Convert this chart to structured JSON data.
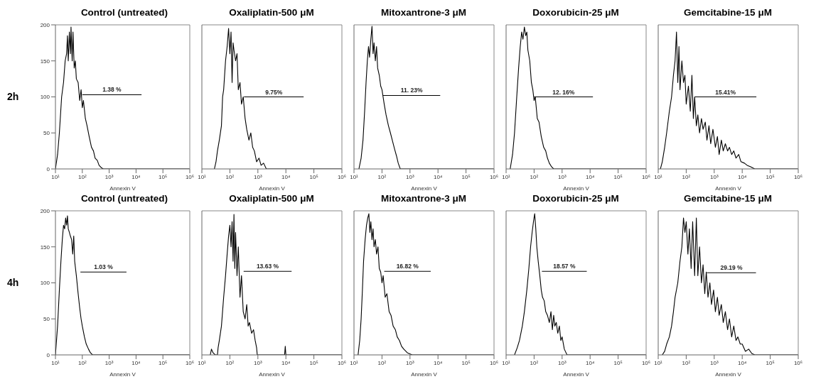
{
  "chart_data": [
    {
      "type": "line",
      "title": "Control (untreated)",
      "xlabel": "Annexin V",
      "ylabel": "2h",
      "log": "x",
      "xlim": [
        10,
        1000000
      ],
      "ylim": [
        0,
        200
      ],
      "yticks": [
        0,
        50,
        100,
        150,
        200
      ],
      "xticks": [
        {
          "value": 10,
          "label": "10¹"
        },
        {
          "value": 100,
          "label": "10²"
        },
        {
          "value": 1000,
          "label": "10³"
        },
        {
          "value": 10000,
          "label": "10⁴"
        },
        {
          "value": 100000,
          "label": "10⁵"
        },
        {
          "value": 1000000,
          "label": "10⁶"
        }
      ],
      "series": [
        {
          "color": "#000000",
          "x": [
            10,
            12,
            14,
            17,
            20,
            23,
            26,
            28,
            30,
            33,
            36,
            38,
            42,
            45,
            50,
            55,
            60,
            70,
            80,
            90,
            100,
            110,
            130,
            150,
            180,
            220,
            260,
            300,
            360,
            420,
            500,
            600,
            1000000
          ],
          "values": [
            0,
            20,
            50,
            100,
            120,
            150,
            160,
            185,
            150,
            190,
            160,
            197,
            150,
            190,
            140,
            150,
            125,
            120,
            95,
            110,
            85,
            95,
            70,
            60,
            45,
            30,
            25,
            15,
            12,
            5,
            2,
            0,
            0
          ]
        },
        {
          "type": "line",
          "color": "#000000",
          "x": [
            100,
            16000
          ],
          "values": [
            103,
            103
          ]
        }
      ],
      "annotations": [
        "1.38 %"
      ]
    },
    {
      "type": "line",
      "title": "Oxaliplatin-500 μM",
      "xlabel": "Annexin V",
      "log": "x",
      "tick_labels": "x",
      "xlim": [
        10,
        1000000
      ],
      "ylim": [
        0,
        200
      ],
      "yticks": [
        0,
        50,
        100,
        150,
        200
      ],
      "xticks": [
        {
          "value": 10,
          "label": "10¹"
        },
        {
          "value": 100,
          "label": "10²"
        },
        {
          "value": 1000,
          "label": "10³"
        },
        {
          "value": 10000,
          "label": "10⁴"
        },
        {
          "value": 100000,
          "label": "10⁵"
        },
        {
          "value": 1000000,
          "label": "10⁶"
        }
      ],
      "series": [
        {
          "color": "#000000",
          "x": [
            28,
            32,
            36,
            42,
            50,
            55,
            60,
            70,
            80,
            90,
            100,
            110,
            120,
            130,
            140,
            160,
            180,
            200,
            230,
            260,
            300,
            350,
            400,
            480,
            560,
            650,
            750,
            900,
            1100,
            1300,
            1600,
            2000,
            1000000
          ],
          "values": [
            0,
            10,
            25,
            40,
            60,
            100,
            110,
            150,
            170,
            195,
            160,
            190,
            120,
            175,
            165,
            150,
            160,
            110,
            120,
            90,
            100,
            70,
            55,
            40,
            50,
            30,
            25,
            10,
            15,
            5,
            8,
            0,
            0
          ]
        },
        {
          "type": "line",
          "color": "#000000",
          "x": [
            320,
            43000
          ],
          "values": [
            100,
            100
          ]
        }
      ],
      "annotations": [
        "9.75%"
      ]
    },
    {
      "type": "line",
      "title": "Mitoxantrone-3 μM",
      "xlabel": "Annexin V",
      "log": "x",
      "tick_labels": "x",
      "xlim": [
        10,
        1000000
      ],
      "ylim": [
        0,
        200
      ],
      "yticks": [
        0,
        50,
        100,
        150,
        200
      ],
      "xticks": [
        {
          "value": 10,
          "label": "10¹"
        },
        {
          "value": 100,
          "label": "10²"
        },
        {
          "value": 1000,
          "label": "10³"
        },
        {
          "value": 10000,
          "label": "10⁴"
        },
        {
          "value": 100000,
          "label": "10⁵"
        },
        {
          "value": 1000000,
          "label": "10⁶"
        }
      ],
      "series": [
        {
          "color": "#000000",
          "x": [
            15,
            18,
            21,
            24,
            27,
            30,
            33,
            36,
            40,
            44,
            48,
            52,
            58,
            64,
            70,
            80,
            90,
            100,
            120,
            140,
            170,
            200,
            240,
            280,
            330,
            380,
            450,
            1000000
          ],
          "values": [
            0,
            15,
            40,
            80,
            120,
            150,
            170,
            155,
            180,
            198,
            160,
            175,
            150,
            170,
            140,
            130,
            115,
            110,
            90,
            75,
            60,
            50,
            38,
            28,
            18,
            8,
            0,
            0
          ]
        },
        {
          "type": "line",
          "color": "#000000",
          "x": [
            110,
            12000
          ],
          "values": [
            102,
            102
          ]
        }
      ],
      "annotations": [
        "11. 23%"
      ]
    },
    {
      "type": "line",
      "title": "Doxorubicin-25 μM",
      "xlabel": "Annexin V",
      "log": "x",
      "tick_labels": "x",
      "xlim": [
        10,
        1000000
      ],
      "ylim": [
        0,
        200
      ],
      "yticks": [
        0,
        50,
        100,
        150,
        200
      ],
      "xticks": [
        {
          "value": 10,
          "label": "10¹"
        },
        {
          "value": 100,
          "label": "10²"
        },
        {
          "value": 1000,
          "label": "10³"
        },
        {
          "value": 10000,
          "label": "10⁴"
        },
        {
          "value": 100000,
          "label": "10⁵"
        },
        {
          "value": 1000000,
          "label": "10⁶"
        }
      ],
      "series": [
        {
          "color": "#000000",
          "x": [
            14,
            17,
            20,
            24,
            28,
            32,
            36,
            40,
            45,
            50,
            55,
            60,
            70,
            80,
            90,
            100,
            110,
            130,
            150,
            180,
            220,
            260,
            300,
            350,
            420,
            500,
            1000000
          ],
          "values": [
            0,
            20,
            50,
            100,
            140,
            170,
            190,
            180,
            197,
            185,
            190,
            165,
            150,
            120,
            110,
            95,
            100,
            70,
            65,
            45,
            30,
            25,
            15,
            8,
            3,
            0,
            0
          ]
        },
        {
          "type": "line",
          "color": "#000000",
          "x": [
            100,
            12600
          ],
          "values": [
            100,
            100
          ]
        }
      ],
      "annotations": [
        "12. 16%"
      ]
    },
    {
      "type": "line",
      "title": "Gemcitabine-15 μM",
      "xlabel": "Annexin V",
      "log": "x",
      "tick_labels": "x",
      "xlim": [
        10,
        1000000
      ],
      "ylim": [
        0,
        200
      ],
      "yticks": [
        0,
        50,
        100,
        150,
        200
      ],
      "xticks": [
        {
          "value": 10,
          "label": "10¹"
        },
        {
          "value": 100,
          "label": "10²"
        },
        {
          "value": 1000,
          "label": "10³"
        },
        {
          "value": 10000,
          "label": "10⁴"
        },
        {
          "value": 100000,
          "label": "10⁵"
        },
        {
          "value": 1000000,
          "label": "10⁶"
        }
      ],
      "series": [
        {
          "color": "#000000",
          "x": [
            12,
            14,
            17,
            20,
            25,
            30,
            35,
            40,
            45,
            50,
            55,
            60,
            70,
            80,
            90,
            100,
            120,
            140,
            160,
            180,
            200,
            230,
            260,
            300,
            350,
            400,
            480,
            550,
            650,
            750,
            900,
            1100,
            1300,
            1500,
            1800,
            2100,
            2500,
            3000,
            3500,
            4200,
            5000,
            6000,
            7500,
            9000,
            12000,
            15000,
            20000,
            28000,
            1000000
          ],
          "values": [
            0,
            10,
            30,
            50,
            80,
            100,
            130,
            150,
            190,
            120,
            170,
            110,
            150,
            120,
            130,
            90,
            115,
            80,
            130,
            70,
            100,
            60,
            75,
            50,
            70,
            55,
            65,
            40,
            60,
            35,
            55,
            30,
            45,
            20,
            40,
            25,
            35,
            25,
            30,
            20,
            25,
            15,
            20,
            10,
            8,
            5,
            3,
            0,
            0
          ]
        },
        {
          "type": "line",
          "color": "#000000",
          "x": [
            200,
            32000
          ],
          "values": [
            100,
            100
          ]
        }
      ],
      "annotations": [
        "15.41%"
      ]
    },
    {
      "type": "line",
      "title": "Control (untreated)",
      "xlabel": "Annexin V",
      "ylabel": "4h",
      "log": "x",
      "xlim": [
        10,
        1000000
      ],
      "ylim": [
        0,
        200
      ],
      "yticks": [
        0,
        50,
        100,
        150,
        200
      ],
      "xticks": [
        {
          "value": 10,
          "label": "10¹"
        },
        {
          "value": 100,
          "label": "10²"
        },
        {
          "value": 1000,
          "label": "10³"
        },
        {
          "value": 10000,
          "label": "10⁴"
        },
        {
          "value": 100000,
          "label": "10⁵"
        },
        {
          "value": 1000000,
          "label": "10⁶"
        }
      ],
      "series": [
        {
          "color": "#000000",
          "x": [
            10,
            12,
            14,
            16,
            18,
            20,
            22,
            24,
            26,
            28,
            30,
            33,
            36,
            40,
            44,
            48,
            52,
            60,
            70,
            80,
            90,
            100,
            120,
            140,
            170,
            200,
            240,
            1000000
          ],
          "values": [
            0,
            40,
            90,
            130,
            160,
            180,
            175,
            190,
            180,
            193,
            175,
            170,
            165,
            160,
            140,
            165,
            130,
            110,
            85,
            65,
            50,
            40,
            25,
            15,
            8,
            3,
            0,
            0
          ]
        },
        {
          "type": "line",
          "color": "#000000",
          "x": [
            85,
            4400
          ],
          "values": [
            115,
            115
          ]
        }
      ],
      "annotations": [
        "1.03 %"
      ]
    },
    {
      "type": "line",
      "title": "Oxaliplatin-500 μM",
      "xlabel": "Annexin V",
      "log": "x",
      "tick_labels": "x",
      "xlim": [
        10,
        1000000
      ],
      "ylim": [
        0,
        200
      ],
      "yticks": [
        0,
        50,
        100,
        150,
        200
      ],
      "xticks": [
        {
          "value": 10,
          "label": "10¹"
        },
        {
          "value": 100,
          "label": "10²"
        },
        {
          "value": 1000,
          "label": "10³"
        },
        {
          "value": 10000,
          "label": "10⁴"
        },
        {
          "value": 100000,
          "label": "10⁵"
        },
        {
          "value": 1000000,
          "label": "10⁶"
        }
      ],
      "series": [
        {
          "color": "#000000",
          "x": [
            20,
            22,
            25,
            30,
            36,
            38,
            42,
            50,
            60,
            70,
            80,
            90,
            100,
            110,
            120,
            130,
            140,
            150,
            160,
            180,
            200,
            230,
            260,
            300,
            350,
            400,
            450,
            500,
            600,
            700,
            800,
            900,
            950,
            9000,
            9500,
            10000,
            1000000
          ],
          "values": [
            0,
            8,
            3,
            0,
            0,
            10,
            20,
            40,
            80,
            110,
            140,
            165,
            180,
            150,
            185,
            130,
            195,
            120,
            170,
            110,
            150,
            80,
            110,
            60,
            50,
            70,
            40,
            45,
            30,
            35,
            20,
            10,
            0,
            0,
            12,
            0,
            0
          ]
        },
        {
          "type": "line",
          "color": "#000000",
          "x": [
            310,
            16000
          ],
          "values": [
            116,
            116
          ]
        }
      ],
      "annotations": [
        "13.63 %"
      ]
    },
    {
      "type": "line",
      "title": "Mitoxantrone-3 μM",
      "xlabel": "Annexin V",
      "log": "x",
      "tick_labels": "x",
      "xlim": [
        10,
        1000000
      ],
      "ylim": [
        0,
        200
      ],
      "yticks": [
        0,
        50,
        100,
        150,
        200
      ],
      "xticks": [
        {
          "value": 10,
          "label": "10¹"
        },
        {
          "value": 100,
          "label": "10²"
        },
        {
          "value": 1000,
          "label": "10³"
        },
        {
          "value": 10000,
          "label": "10⁴"
        },
        {
          "value": 100000,
          "label": "10⁵"
        },
        {
          "value": 1000000,
          "label": "10⁶"
        }
      ],
      "series": [
        {
          "color": "#000000",
          "x": [
            14,
            16,
            18,
            20,
            22,
            25,
            28,
            31,
            34,
            37,
            40,
            44,
            48,
            52,
            58,
            64,
            72,
            80,
            90,
            100,
            110,
            130,
            150,
            180,
            210,
            250,
            300,
            350,
            420,
            500,
            600,
            800,
            1200,
            1000000
          ],
          "values": [
            0,
            20,
            50,
            90,
            130,
            160,
            180,
            190,
            196,
            170,
            185,
            160,
            175,
            150,
            160,
            140,
            150,
            120,
            115,
            100,
            110,
            80,
            85,
            60,
            55,
            40,
            35,
            25,
            20,
            12,
            8,
            3,
            0,
            0
          ]
        },
        {
          "type": "line",
          "color": "#000000",
          "x": [
            120,
            5500
          ],
          "values": [
            116,
            116
          ]
        }
      ],
      "annotations": [
        "16.82 %"
      ]
    },
    {
      "type": "line",
      "title": "Doxorubicin-25 μM",
      "xlabel": "Annexin V",
      "log": "x",
      "tick_labels": "x",
      "xlim": [
        10,
        1000000
      ],
      "ylim": [
        0,
        200
      ],
      "yticks": [
        0,
        50,
        100,
        150,
        200
      ],
      "xticks": [
        {
          "value": 10,
          "label": "10¹"
        },
        {
          "value": 100,
          "label": "10²"
        },
        {
          "value": 1000,
          "label": "10³"
        },
        {
          "value": 10000,
          "label": "10⁴"
        },
        {
          "value": 100000,
          "label": "10⁵"
        },
        {
          "value": 1000000,
          "label": "10⁶"
        }
      ],
      "series": [
        {
          "color": "#000000",
          "x": [
            20,
            25,
            30,
            38,
            45,
            55,
            65,
            75,
            85,
            95,
            105,
            115,
            125,
            140,
            160,
            180,
            200,
            230,
            260,
            300,
            350,
            400,
            450,
            500,
            550,
            620,
            700,
            800,
            900,
            1000,
            1200,
            1500,
            1000000
          ],
          "values": [
            0,
            10,
            20,
            40,
            60,
            90,
            120,
            150,
            170,
            185,
            196,
            175,
            150,
            130,
            110,
            90,
            80,
            75,
            60,
            55,
            45,
            60,
            35,
            55,
            40,
            45,
            30,
            40,
            20,
            25,
            8,
            0,
            0
          ]
        },
        {
          "type": "line",
          "color": "#000000",
          "x": [
            190,
            7600
          ],
          "values": [
            116,
            116
          ]
        }
      ],
      "annotations": [
        "18.57 %"
      ]
    },
    {
      "type": "line",
      "title": "Gemcitabine-15 μM",
      "xlabel": "Annexin V",
      "log": "x",
      "tick_labels": "x",
      "xlim": [
        10,
        1000000
      ],
      "ylim": [
        0,
        200
      ],
      "yticks": [
        0,
        50,
        100,
        150,
        200
      ],
      "xticks": [
        {
          "value": 10,
          "label": "10¹"
        },
        {
          "value": 100,
          "label": "10²"
        },
        {
          "value": 1000,
          "label": "10³"
        },
        {
          "value": 10000,
          "label": "10⁴"
        },
        {
          "value": 100000,
          "label": "10⁵"
        },
        {
          "value": 1000000,
          "label": "10⁶"
        }
      ],
      "series": [
        {
          "color": "#000000",
          "x": [
            14,
            17,
            20,
            25,
            30,
            35,
            40,
            50,
            60,
            70,
            80,
            90,
            100,
            115,
            130,
            150,
            170,
            200,
            230,
            260,
            300,
            350,
            400,
            460,
            520,
            600,
            700,
            800,
            950,
            1100,
            1300,
            1500,
            1800,
            2100,
            2500,
            3000,
            3500,
            4200,
            5000,
            6000,
            7000,
            8500,
            10000,
            13000,
            17000,
            22000,
            28000,
            1000000
          ],
          "values": [
            0,
            5,
            15,
            25,
            40,
            60,
            80,
            100,
            130,
            150,
            190,
            170,
            185,
            140,
            175,
            120,
            185,
            110,
            190,
            110,
            150,
            100,
            125,
            85,
            115,
            80,
            100,
            70,
            90,
            60,
            80,
            55,
            70,
            45,
            60,
            35,
            50,
            25,
            40,
            20,
            25,
            15,
            15,
            5,
            8,
            2,
            0,
            0
          ]
        },
        {
          "type": "line",
          "color": "#000000",
          "x": [
            550,
            31000
          ],
          "values": [
            114,
            114
          ]
        }
      ],
      "annotations": [
        "29.19 %"
      ]
    }
  ]
}
